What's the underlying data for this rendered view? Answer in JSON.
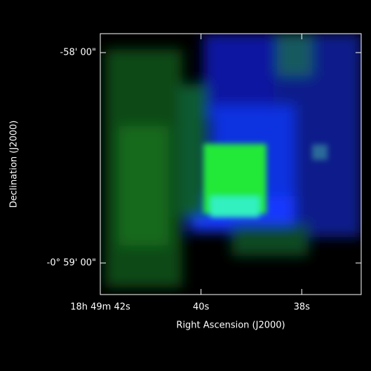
{
  "chart_data": {
    "type": "image",
    "x_label": "Right Ascension (J2000)",
    "y_label": "Declination (J2000)",
    "xlim": [
      42,
      36.82
    ],
    "xticks": [
      {
        "value": 42,
        "label": "18h 49m 42s"
      },
      {
        "value": 40,
        "label": "40s"
      },
      {
        "value": 38,
        "label": "38s"
      }
    ],
    "ylim": [
      -3549,
      -3474.6
    ],
    "yticks": [
      {
        "value": -3480,
        "label": "-58' 00\""
      },
      {
        "value": -3540,
        "label": "-0° 59' 00\""
      }
    ]
  }
}
